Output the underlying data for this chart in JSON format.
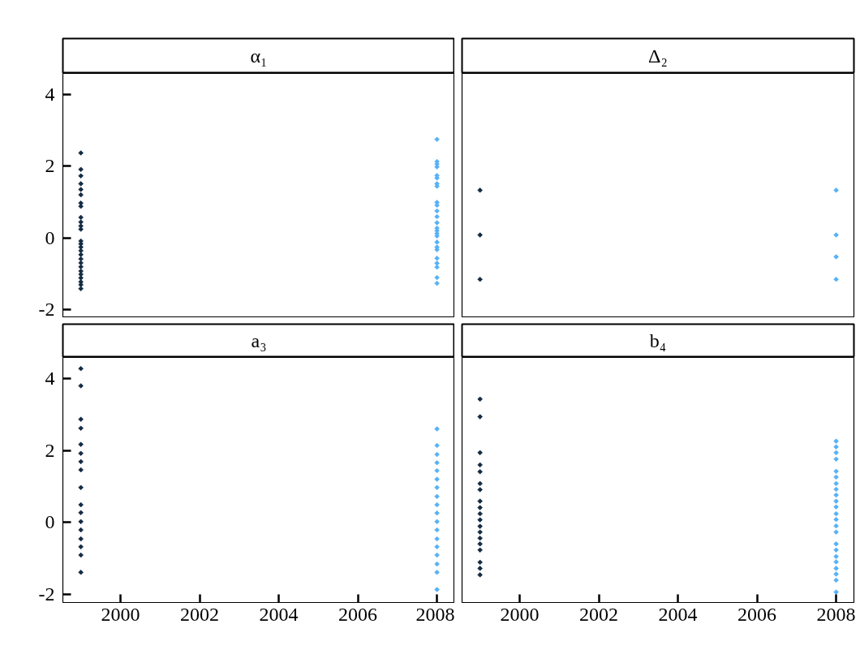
{
  "chart_data": [
    {
      "type": "scatter",
      "title": "α₁",
      "marker": "diamond",
      "xlim": [
        "1998-07-19",
        "2008-06-13"
      ],
      "xticks": [
        "2000",
        "2002",
        "2004",
        "2006",
        "2008"
      ],
      "ylim": [
        -2.23,
        4.59
      ],
      "yticks": [
        -2,
        0,
        2,
        4
      ],
      "tick_labels": "y",
      "x": [
        "1999",
        "2008",
        "1999",
        "2008",
        "1999",
        "2008",
        "1999",
        "2008",
        "1999",
        "2008",
        "1999",
        "2008",
        "1999",
        "2008",
        "1999",
        "2008",
        "1999",
        "2008",
        "1999",
        "2008",
        "1999",
        "2008",
        "1999",
        "2008",
        "1999",
        "2008",
        "1999",
        "2008",
        "1999",
        "2008",
        "1999",
        "2008",
        "1999",
        "2008",
        "1999",
        "2008",
        "1999",
        "2008",
        "1999",
        "2008",
        "1999",
        "2008",
        "1999",
        "2008",
        "1999",
        "2008",
        "1999",
        "2008",
        "1999",
        "2008",
        "1999"
      ],
      "values": [
        2.37,
        2.75,
        1.91,
        2.13,
        1.73,
        2.06,
        1.51,
        1.98,
        1.35,
        1.74,
        1.2,
        1.67,
        0.97,
        1.51,
        0.88,
        1.44,
        0.57,
        0.99,
        0.44,
        0.91,
        0.33,
        0.75,
        0.24,
        0.59,
        -0.09,
        0.42,
        -0.17,
        0.27,
        -0.26,
        0.2,
        -0.36,
        0.12,
        -0.47,
        0.05,
        -0.59,
        -0.12,
        -0.7,
        -0.26,
        -0.81,
        -0.33,
        -0.93,
        -0.57,
        -1.02,
        -0.71,
        -1.12,
        -0.82,
        -1.23,
        -1.11,
        -1.31,
        -1.27,
        -1.42
      ],
      "colors": [
        "#132b43",
        "#56b1f7",
        "#132b43",
        "#56b1f7",
        "#132b43",
        "#56b1f7",
        "#132b43",
        "#56b1f7",
        "#132b43",
        "#56b1f7",
        "#132b43",
        "#56b1f7",
        "#132b43",
        "#56b1f7",
        "#132b43",
        "#56b1f7",
        "#132b43",
        "#56b1f7",
        "#132b43",
        "#56b1f7",
        "#132b43",
        "#56b1f7",
        "#132b43",
        "#56b1f7",
        "#132b43",
        "#56b1f7",
        "#132b43",
        "#56b1f7",
        "#132b43",
        "#56b1f7",
        "#132b43",
        "#56b1f7",
        "#132b43",
        "#56b1f7",
        "#132b43",
        "#56b1f7",
        "#132b43",
        "#56b1f7",
        "#132b43",
        "#56b1f7",
        "#132b43",
        "#56b1f7",
        "#132b43",
        "#56b1f7",
        "#132b43",
        "#56b1f7",
        "#132b43",
        "#56b1f7",
        "#132b43",
        "#56b1f7",
        "#132b43"
      ]
    },
    {
      "type": "scatter",
      "title": "Δ₂",
      "marker": "diamond",
      "xlim": [
        "1998-07-19",
        "2008-06-13"
      ],
      "xticks": [
        "2000",
        "2002",
        "2004",
        "2006",
        "2008"
      ],
      "ylim": [
        -2.23,
        4.59
      ],
      "yticks": [
        -2,
        0,
        2,
        4
      ],
      "tick_labels": false,
      "x": [
        "1999",
        "2008",
        "1999",
        "2008",
        "1999",
        "2008",
        "2008"
      ],
      "values": [
        1.33,
        1.33,
        0.08,
        0.08,
        -1.16,
        -0.53,
        -1.16
      ],
      "colors": [
        "#132b43",
        "#56b1f7",
        "#132b43",
        "#56b1f7",
        "#132b43",
        "#56b1f7",
        "#56b1f7"
      ]
    },
    {
      "type": "scatter",
      "title": "a₃",
      "marker": "diamond",
      "xlim": [
        "1998-07-19",
        "2008-06-13"
      ],
      "xticks": [
        "2000",
        "2002",
        "2004",
        "2006",
        "2008"
      ],
      "ylim": [
        -2.23,
        4.59
      ],
      "yticks": [
        -2,
        0,
        2,
        4
      ],
      "x": [
        "1999",
        "2008",
        "1999",
        "2008",
        "1999",
        "2008",
        "1999",
        "2008",
        "1999",
        "2008",
        "1999",
        "2008",
        "1999",
        "2008",
        "1999",
        "2008",
        "1999",
        "2008",
        "1999",
        "2008",
        "1999",
        "2008",
        "1999",
        "2008",
        "1999",
        "2008",
        "1999",
        "2008",
        "1999",
        "2008",
        "1999",
        "2008",
        "1999",
        "2008",
        "2008"
      ],
      "values": [
        4.28,
        2.6,
        3.8,
        2.14,
        2.87,
        1.89,
        2.62,
        1.66,
        2.17,
        1.44,
        1.92,
        1.2,
        1.69,
        0.97,
        1.46,
        0.72,
        0.97,
        0.49,
        0.49,
        0.26,
        0.27,
        0.02,
        0.02,
        -0.21,
        -0.21,
        -0.46,
        -0.46,
        -0.68,
        -0.68,
        -0.91,
        -0.91,
        -1.16,
        -1.39,
        -1.39,
        -1.87
      ],
      "colors": [
        "#132b43",
        "#56b1f7",
        "#132b43",
        "#56b1f7",
        "#132b43",
        "#56b1f7",
        "#132b43",
        "#56b1f7",
        "#132b43",
        "#56b1f7",
        "#132b43",
        "#56b1f7",
        "#132b43",
        "#56b1f7",
        "#132b43",
        "#56b1f7",
        "#132b43",
        "#56b1f7",
        "#132b43",
        "#56b1f7",
        "#132b43",
        "#56b1f7",
        "#132b43",
        "#56b1f7",
        "#132b43",
        "#56b1f7",
        "#132b43",
        "#56b1f7",
        "#132b43",
        "#56b1f7",
        "#132b43",
        "#56b1f7",
        "#132b43",
        "#56b1f7",
        "#56b1f7"
      ]
    },
    {
      "type": "scatter",
      "title": "b₄",
      "marker": "diamond",
      "xlim": [
        "1998-07-19",
        "2008-06-13"
      ],
      "xticks": [
        "2000",
        "2002",
        "2004",
        "2006",
        "2008"
      ],
      "ylim": [
        -2.23,
        4.59
      ],
      "yticks": [
        -2,
        0,
        2,
        4
      ],
      "tick_labels": "x",
      "x": [
        "1999",
        "2008",
        "1999",
        "2008",
        "1999",
        "2008",
        "1999",
        "2008",
        "1999",
        "2008",
        "1999",
        "2008",
        "1999",
        "2008",
        "1999",
        "2008",
        "1999",
        "2008",
        "1999",
        "2008",
        "1999",
        "2008",
        "1999",
        "2008",
        "1999",
        "2008",
        "1999",
        "2008",
        "1999",
        "2008",
        "1999",
        "2008",
        "1999",
        "2008",
        "1999",
        "2008",
        "1999",
        "2008",
        "2008",
        "2008",
        "2008",
        "2008"
      ],
      "values": [
        3.43,
        2.26,
        2.94,
        2.1,
        1.94,
        1.94,
        1.6,
        1.76,
        1.41,
        1.42,
        1.08,
        1.26,
        0.91,
        1.08,
        0.59,
        0.92,
        0.41,
        0.76,
        0.24,
        0.59,
        0.07,
        0.43,
        -0.11,
        0.24,
        -0.27,
        0.08,
        -0.44,
        -0.1,
        -0.6,
        -0.27,
        -0.77,
        -0.6,
        -1.11,
        -0.77,
        -1.28,
        -0.95,
        -1.46,
        -1.1,
        -1.28,
        -1.44,
        -1.61,
        -1.94
      ],
      "colors": [
        "#132b43",
        "#56b1f7",
        "#132b43",
        "#56b1f7",
        "#132b43",
        "#56b1f7",
        "#132b43",
        "#56b1f7",
        "#132b43",
        "#56b1f7",
        "#132b43",
        "#56b1f7",
        "#132b43",
        "#56b1f7",
        "#132b43",
        "#56b1f7",
        "#132b43",
        "#56b1f7",
        "#132b43",
        "#56b1f7",
        "#132b43",
        "#56b1f7",
        "#132b43",
        "#56b1f7",
        "#132b43",
        "#56b1f7",
        "#132b43",
        "#56b1f7",
        "#132b43",
        "#56b1f7",
        "#132b43",
        "#56b1f7",
        "#132b43",
        "#56b1f7",
        "#132b43",
        "#56b1f7",
        "#132b43",
        "#56b1f7",
        "#56b1f7",
        "#56b1f7",
        "#56b1f7",
        "#56b1f7"
      ]
    }
  ]
}
